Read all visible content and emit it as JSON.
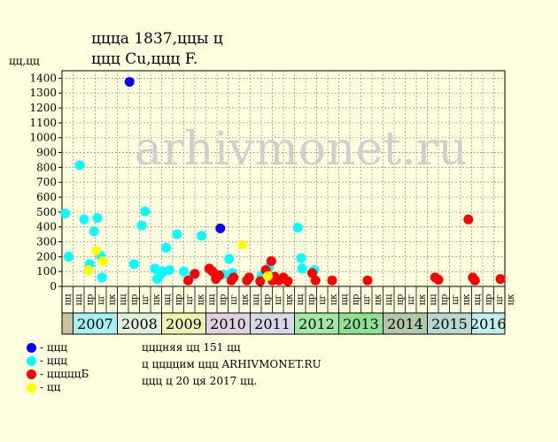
{
  "header": {
    "title_line1": "ццца 1837,ццы ц",
    "title_line2": "ццц Cu,ццц F.",
    "y_unit": "цц,цц"
  },
  "watermark": "arhivmonet.ru",
  "legend": [
    {
      "label": "- ццц",
      "color": "#0000ff"
    },
    {
      "label": "- ццц",
      "color": "#00ffff"
    },
    {
      "label": "- цццццБ",
      "color": "#ff0000"
    },
    {
      "label": "- цц",
      "color": "#ffff00"
    }
  ],
  "info": [
    "цццняя цц 151 цц",
    "ц ццццим ццц ARHIVMONET.RU",
    "ццц ц 20 ця 2017 цц."
  ],
  "chart_data": {
    "type": "scatter",
    "ylim": [
      0,
      1450
    ],
    "yticks": [
      0,
      100,
      200,
      300,
      400,
      500,
      600,
      700,
      800,
      900,
      1000,
      1100,
      1200,
      1300,
      1400
    ],
    "xlim": [
      0,
      40
    ],
    "grid": true,
    "quarter_labels": [
      "цц",
      "цц",
      "цр",
      "цг",
      "цк",
      "цц",
      "цр",
      "цг",
      "цк",
      "цц",
      "цр",
      "цг",
      "цк",
      "цц",
      "цр",
      "цг",
      "цк",
      "цц",
      "цр",
      "цг",
      "цк",
      "цц",
      "цр",
      "цг",
      "цк",
      "цц",
      "цр",
      "цг",
      "цк",
      "цц",
      "цр",
      "цг",
      "цк",
      "цц",
      "цр",
      "цг",
      "цк",
      "цц",
      "цр",
      "цг",
      "цк"
    ],
    "years": [
      {
        "label": "2007",
        "start": 1,
        "end": 5,
        "color": "#a8f0f0"
      },
      {
        "label": "2008",
        "start": 5,
        "end": 9,
        "color": "#e0f0e0"
      },
      {
        "label": "2009",
        "start": 9,
        "end": 13,
        "color": "#f0f0b0"
      },
      {
        "label": "2010",
        "start": 13,
        "end": 17,
        "color": "#e0d0e0"
      },
      {
        "label": "2011",
        "start": 17,
        "end": 21,
        "color": "#d8d8e8"
      },
      {
        "label": "2012",
        "start": 21,
        "end": 25,
        "color": "#a0e8a8"
      },
      {
        "label": "2013",
        "start": 25,
        "end": 29,
        "color": "#90e090"
      },
      {
        "label": "2014",
        "start": 29,
        "end": 33,
        "color": "#b0c8a8"
      },
      {
        "label": "2015",
        "start": 33,
        "end": 37,
        "color": "#b8d8d0"
      },
      {
        "label": "2016",
        "start": 37,
        "end": 40,
        "color": "#c0eeee"
      }
    ],
    "series": [
      {
        "name": "ццц",
        "color": "#0000ff",
        "points": [
          [
            6.1,
            1375
          ],
          [
            14.3,
            390
          ]
        ]
      },
      {
        "name": "ццц",
        "color": "#00ffff",
        "points": [
          [
            0.3,
            490
          ],
          [
            0.6,
            200
          ],
          [
            1.6,
            815
          ],
          [
            2.0,
            450
          ],
          [
            2.5,
            150
          ],
          [
            2.9,
            370
          ],
          [
            3.2,
            460
          ],
          [
            3.5,
            205
          ],
          [
            3.6,
            60
          ],
          [
            6.5,
            150
          ],
          [
            7.2,
            410
          ],
          [
            7.5,
            505
          ],
          [
            8.4,
            120
          ],
          [
            8.6,
            50
          ],
          [
            8.9,
            80
          ],
          [
            9.1,
            100
          ],
          [
            9.4,
            260
          ],
          [
            9.7,
            110
          ],
          [
            10.4,
            350
          ],
          [
            11.0,
            100
          ],
          [
            11.8,
            70
          ],
          [
            12.6,
            340
          ],
          [
            14.6,
            80
          ],
          [
            15.1,
            185
          ],
          [
            15.4,
            90
          ],
          [
            18.0,
            70
          ],
          [
            18.7,
            130
          ],
          [
            21.3,
            395
          ],
          [
            21.6,
            190
          ],
          [
            21.7,
            120
          ],
          [
            22.8,
            110
          ]
        ]
      },
      {
        "name": "цццццБ",
        "color": "#ff0000",
        "points": [
          [
            11.4,
            40
          ],
          [
            12.0,
            85
          ],
          [
            13.3,
            120
          ],
          [
            13.6,
            100
          ],
          [
            13.9,
            50
          ],
          [
            14.2,
            75
          ],
          [
            15.3,
            40
          ],
          [
            15.5,
            60
          ],
          [
            16.7,
            40
          ],
          [
            16.9,
            60
          ],
          [
            17.9,
            35
          ],
          [
            18.4,
            110
          ],
          [
            18.9,
            170
          ],
          [
            19.0,
            40
          ],
          [
            19.2,
            65
          ],
          [
            19.6,
            40
          ],
          [
            20.0,
            60
          ],
          [
            20.4,
            35
          ],
          [
            22.6,
            90
          ],
          [
            22.9,
            40
          ],
          [
            24.4,
            40
          ],
          [
            27.6,
            40
          ],
          [
            33.7,
            60
          ],
          [
            34.0,
            45
          ],
          [
            36.7,
            450
          ],
          [
            37.1,
            60
          ],
          [
            37.3,
            40
          ],
          [
            39.6,
            50
          ]
        ]
      },
      {
        "name": "цц",
        "color": "#ffff00",
        "points": [
          [
            2.4,
            110
          ],
          [
            3.1,
            240
          ],
          [
            3.7,
            170
          ],
          [
            16.3,
            280
          ],
          [
            18.6,
            70
          ]
        ]
      }
    ]
  }
}
